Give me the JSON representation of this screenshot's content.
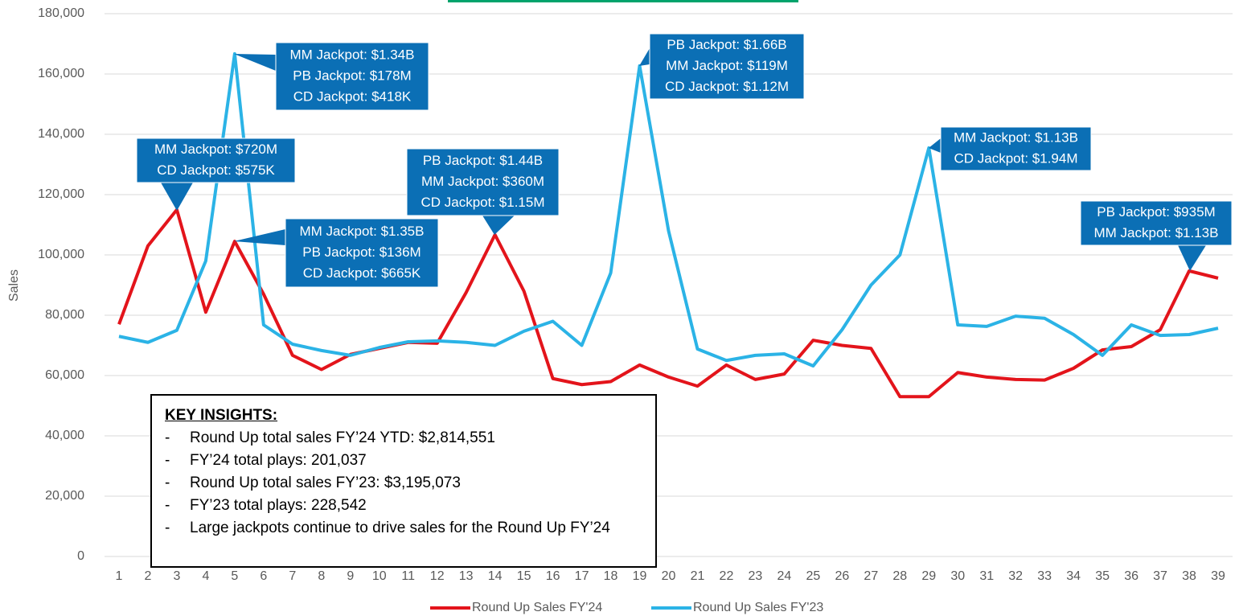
{
  "chart_data": {
    "type": "line",
    "y_label": "Sales",
    "categories": [
      "1",
      "2",
      "3",
      "4",
      "5",
      "6",
      "7",
      "8",
      "9",
      "10",
      "11",
      "12",
      "13",
      "14",
      "15",
      "16",
      "17",
      "18",
      "19",
      "20",
      "21",
      "22",
      "23",
      "24",
      "25",
      "26",
      "27",
      "28",
      "29",
      "30",
      "31",
      "32",
      "33",
      "34",
      "35",
      "36",
      "37",
      "38",
      "39"
    ],
    "series": [
      {
        "name": "Round Up Sales FY'24",
        "color": "#e3141b",
        "values": [
          77000,
          103000,
          115000,
          81000,
          104500,
          87000,
          66700,
          62000,
          67000,
          69000,
          71000,
          70700,
          87500,
          106700,
          88000,
          59000,
          57000,
          58000,
          63500,
          59500,
          56500,
          63500,
          58700,
          60500,
          71700,
          70000,
          69000,
          53000,
          53000,
          61000,
          59500,
          58700,
          58500,
          62400,
          68500,
          69600,
          75200,
          94700,
          92300
        ]
      },
      {
        "name": "Round Up Sales FY'23",
        "color": "#2bb3e6",
        "values": [
          73000,
          71000,
          75000,
          98000,
          166700,
          76800,
          70400,
          68300,
          66700,
          69300,
          71200,
          71500,
          71000,
          70000,
          74700,
          78000,
          70000,
          94000,
          162700,
          108000,
          68800,
          65000,
          66700,
          67200,
          63200,
          75200,
          90000,
          100000,
          135500,
          76800,
          76300,
          79700,
          79000,
          73600,
          66700,
          76800,
          73300,
          73600,
          75700
        ]
      }
    ],
    "ylim": [
      0,
      180000
    ],
    "yticks": [
      0,
      {
        "value": 20000,
        "label": "20,000"
      },
      {
        "value": 40000,
        "label": "40,000"
      },
      {
        "value": 60000,
        "label": "60,000"
      },
      {
        "value": 80000,
        "label": "80,000"
      },
      {
        "value": 100000,
        "label": "100,000"
      },
      {
        "value": 120000,
        "label": "120,000"
      },
      {
        "value": 140000,
        "label": "140,000"
      },
      {
        "value": 160000,
        "label": "160,000"
      },
      {
        "value": 180000,
        "label": "180,000"
      }
    ],
    "grid": true,
    "legend": "bottom",
    "annotations": [
      {
        "lines": [
          "MM Jackpot: $720M",
          "CD Jackpot: $575K"
        ]
      },
      {
        "lines": [
          "MM Jackpot: $1.34B",
          "PB Jackpot: $178M",
          "CD Jackpot: $418K"
        ]
      },
      {
        "lines": [
          "MM Jackpot: $1.35B",
          "PB Jackpot: $136M",
          "CD Jackpot: $665K"
        ]
      },
      {
        "lines": [
          "PB Jackpot: $1.44B",
          "MM Jackpot: $360M",
          "CD Jackpot: $1.15M"
        ]
      },
      {
        "lines": [
          "PB Jackpot: $1.66B",
          "MM Jackpot: $119M",
          "CD Jackpot: $1.12M"
        ]
      },
      {
        "lines": [
          "MM Jackpot: $1.13B",
          "CD Jackpot: $1.94M"
        ]
      },
      {
        "lines": [
          "PB Jackpot: $935M",
          "MM Jackpot: $1.13B"
        ]
      }
    ],
    "key_insights": {
      "title": "KEY INSIGHTS:",
      "bullet": "-",
      "items": [
        "Round Up total sales FY’24 YTD: $2,814,551",
        "FY’24 total plays: 201,037",
        "Round Up total sales FY’23: $3,195,073",
        "FY’23 total plays: 228,542",
        "Large jackpots continue to drive sales for the Round Up FY’24"
      ]
    }
  }
}
